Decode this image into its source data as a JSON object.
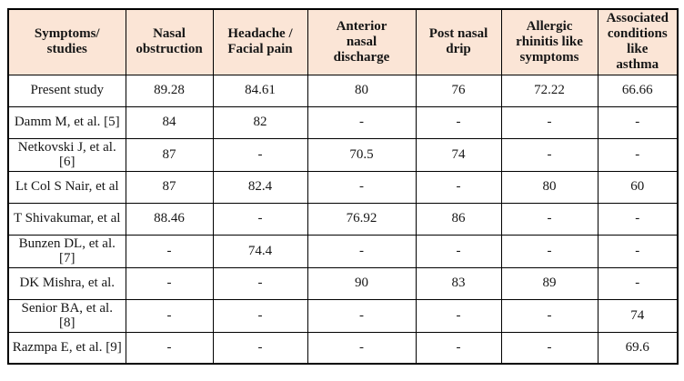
{
  "colors": {
    "header_bg": "#fbe5d6",
    "border": "#000000",
    "text": "#161616",
    "body_bg": "#ffffff"
  },
  "table": {
    "columns": [
      "Symptoms/\nstudies",
      "Nasal\nobstruction",
      "Headache /\nFacial pain",
      "Anterior\nnasal\ndischarge",
      "Post nasal\ndrip",
      "Allergic\nrhinitis like\nsymptoms",
      "Associated\nconditions\nlike\nasthma"
    ],
    "rows": [
      {
        "study": "Present study",
        "values": [
          "89.28",
          "84.61",
          "80",
          "76",
          "72.22",
          "66.66"
        ]
      },
      {
        "study": "Damm M, et al. [5]",
        "values": [
          "84",
          "82",
          "-",
          "-",
          "-",
          "-"
        ]
      },
      {
        "study": "Netkovski J, et al. [6]",
        "values": [
          "87",
          "-",
          "70.5",
          "74",
          "-",
          "-"
        ]
      },
      {
        "study": "Lt Col S Nair, et al",
        "values": [
          "87",
          "82.4",
          "-",
          "-",
          "80",
          "60"
        ]
      },
      {
        "study": "T Shivakumar, et al",
        "values": [
          "88.46",
          "-",
          "76.92",
          "86",
          "-",
          "-"
        ]
      },
      {
        "study": "Bunzen DL, et al. [7]",
        "values": [
          "-",
          "74.4",
          "-",
          "-",
          "-",
          "-"
        ]
      },
      {
        "study": "DK Mishra, et al.",
        "values": [
          "-",
          "-",
          "90",
          "83",
          "89",
          "-"
        ]
      },
      {
        "study": "Senior BA, et al. [8]",
        "values": [
          "-",
          "-",
          "-",
          "-",
          "-",
          "74"
        ]
      },
      {
        "study": "Razmpa E, et al. [9]",
        "values": [
          "-",
          "-",
          "-",
          "-",
          "-",
          "69.6"
        ]
      }
    ]
  }
}
